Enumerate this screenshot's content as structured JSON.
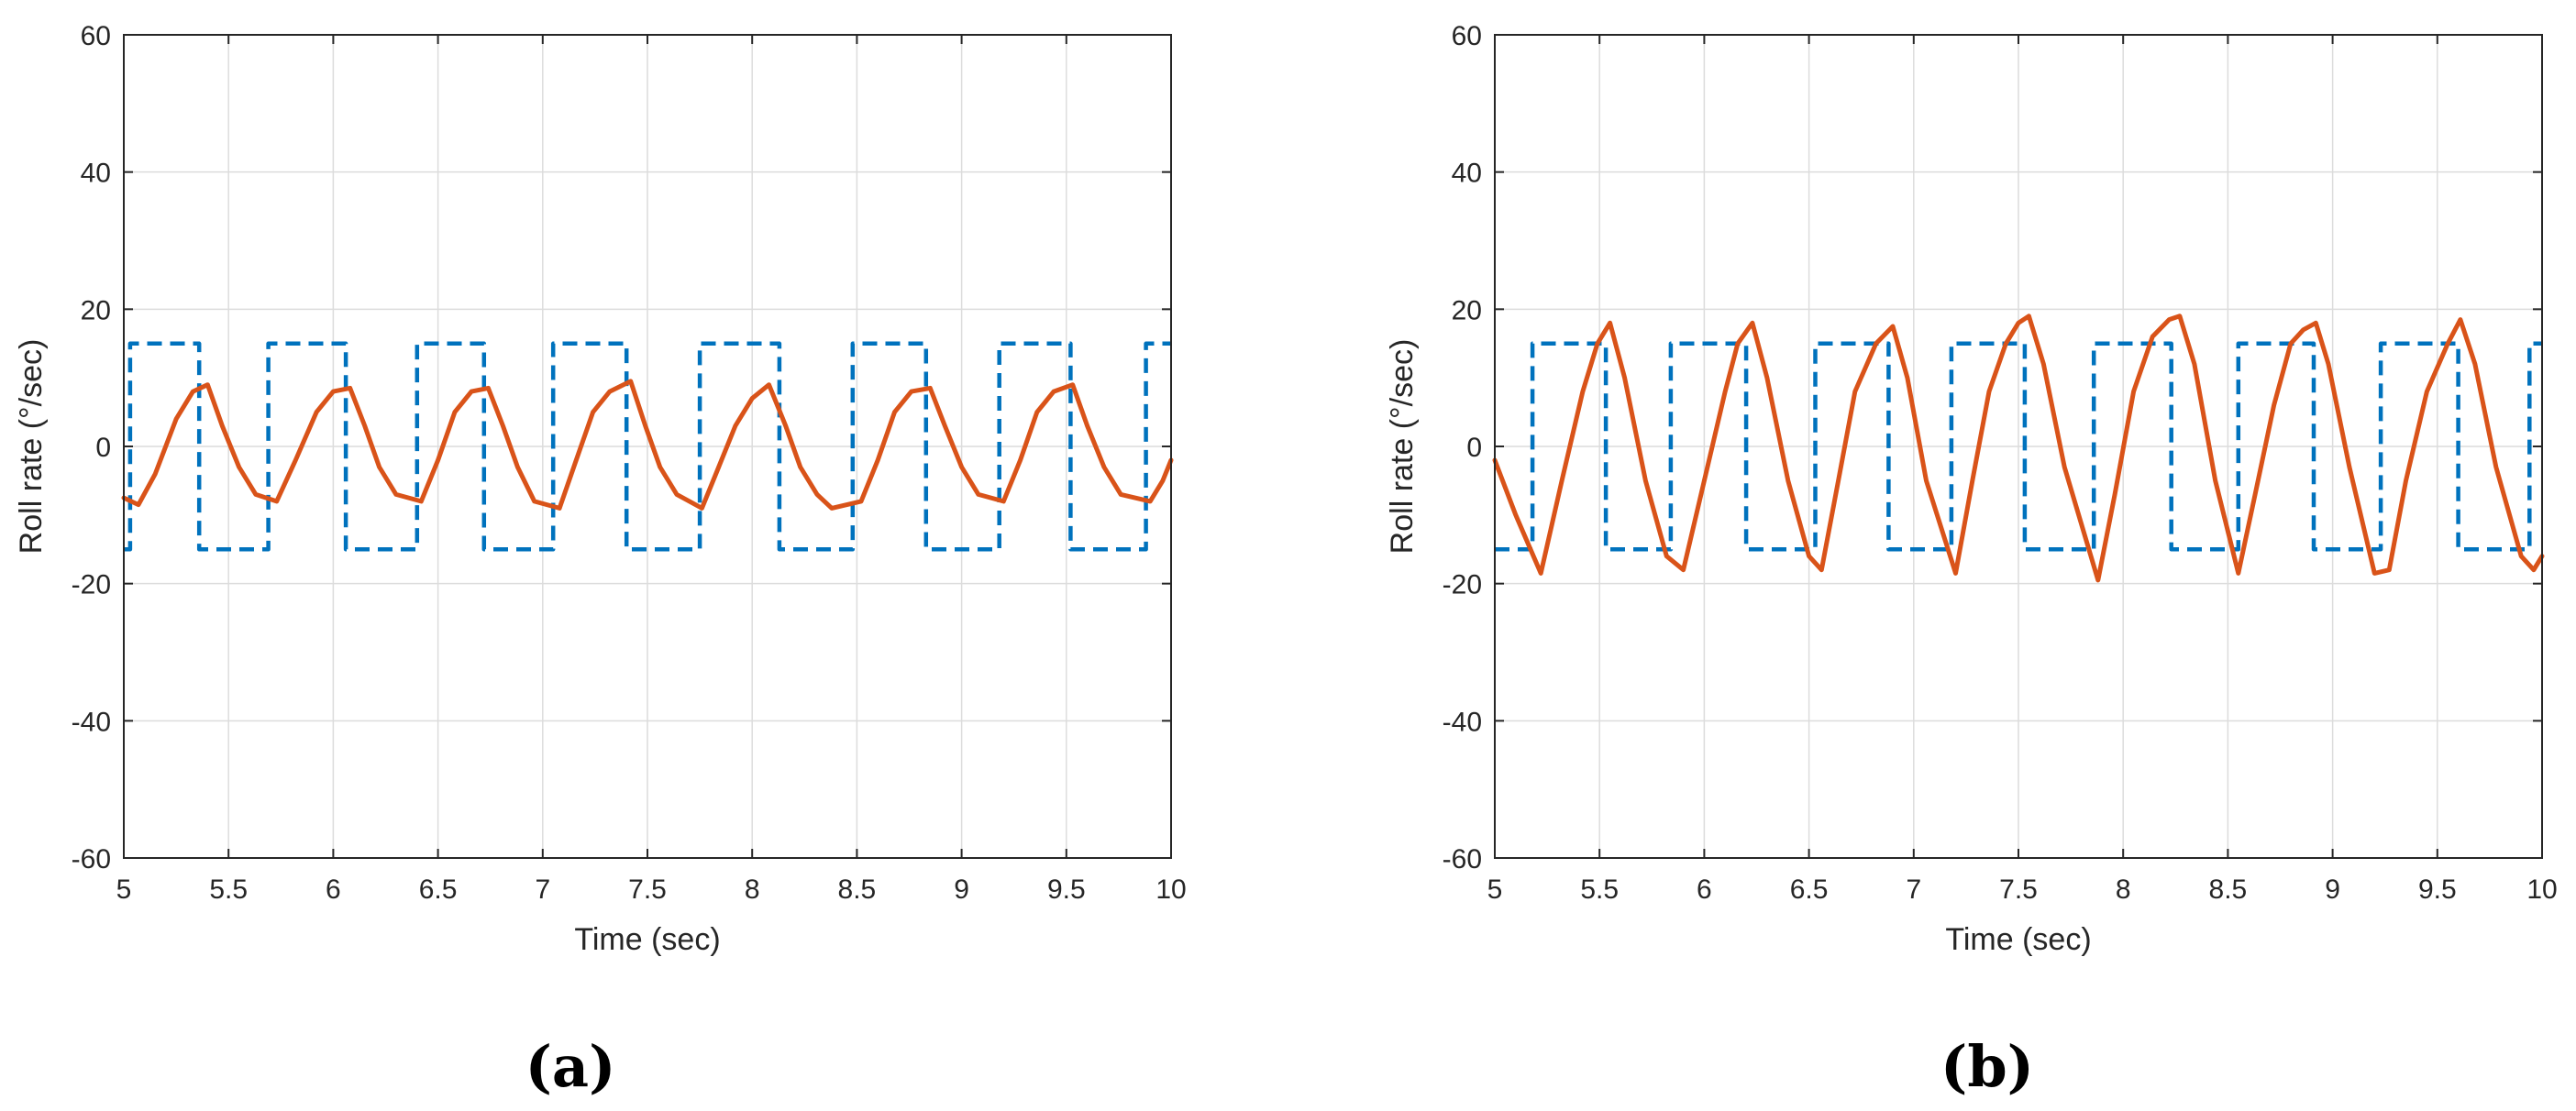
{
  "chart_data": [
    {
      "type": "line",
      "panel_label": "(a)",
      "xlabel": "Time (sec)",
      "ylabel": "Roll rate (°/sec)",
      "xlim": [
        5,
        10
      ],
      "ylim": [
        -60,
        60
      ],
      "xticks": [
        5,
        5.5,
        6,
        6.5,
        7,
        7.5,
        8,
        8.5,
        9,
        9.5,
        10
      ],
      "xtick_labels": [
        "5",
        "5.5",
        "6",
        "6.5",
        "7",
        "7.5",
        "8",
        "8.5",
        "9",
        "9.5",
        "10"
      ],
      "yticks": [
        -60,
        -40,
        -20,
        0,
        20,
        40,
        60
      ],
      "ytick_labels": [
        "-60",
        "-40",
        "-20",
        "0",
        "20",
        "40",
        "60"
      ],
      "grid": true,
      "colors": {
        "command": "#0072BD",
        "response": "#D95319"
      },
      "series": [
        {
          "style": "dashed",
          "color": "#0072BD",
          "x": [
            5.0,
            5.03,
            5.03,
            5.36,
            5.36,
            5.69,
            5.69,
            6.06,
            6.06,
            6.4,
            6.4,
            6.72,
            6.72,
            7.05,
            7.05,
            7.4,
            7.4,
            7.75,
            7.75,
            8.13,
            8.13,
            8.48,
            8.48,
            8.83,
            8.83,
            9.18,
            9.18,
            9.52,
            9.52,
            9.88,
            9.88,
            10.0
          ],
          "y": [
            -15,
            -15,
            15,
            15,
            -15,
            -15,
            15,
            15,
            -15,
            -15,
            15,
            15,
            -15,
            -15,
            15,
            15,
            -15,
            -15,
            15,
            15,
            -15,
            -15,
            15,
            15,
            -15,
            -15,
            15,
            15,
            -15,
            -15,
            15,
            15
          ]
        },
        {
          "style": "solid",
          "color": "#D95319",
          "x": [
            5.0,
            5.07,
            5.15,
            5.25,
            5.33,
            5.4,
            5.47,
            5.55,
            5.63,
            5.73,
            5.82,
            5.92,
            6.0,
            6.08,
            6.15,
            6.22,
            6.3,
            6.42,
            6.5,
            6.58,
            6.66,
            6.74,
            6.81,
            6.88,
            6.96,
            7.08,
            7.16,
            7.24,
            7.32,
            7.42,
            7.49,
            7.56,
            7.64,
            7.76,
            7.84,
            7.92,
            8.0,
            8.08,
            8.16,
            8.23,
            8.31,
            8.38,
            8.52,
            8.6,
            8.68,
            8.76,
            8.85,
            8.92,
            9.0,
            9.08,
            9.2,
            9.28,
            9.36,
            9.44,
            9.53,
            9.6,
            9.68,
            9.76,
            9.9,
            9.96,
            10.0
          ],
          "y": [
            -7.5,
            -8.5,
            -4,
            4,
            8,
            9,
            3,
            -3,
            -7,
            -8,
            -2,
            5,
            8,
            8.5,
            3,
            -3,
            -7,
            -8,
            -2,
            5,
            8,
            8.5,
            3,
            -3,
            -8,
            -9,
            -2,
            5,
            8,
            9.5,
            3,
            -3,
            -7,
            -9,
            -3,
            3,
            7,
            9,
            3,
            -3,
            -7,
            -9,
            -8,
            -2,
            5,
            8,
            8.5,
            3,
            -3,
            -7,
            -8,
            -2,
            5,
            8,
            9,
            3,
            -3,
            -7,
            -8,
            -5,
            -2
          ]
        }
      ]
    },
    {
      "type": "line",
      "panel_label": "(b)",
      "xlabel": "Time (sec)",
      "ylabel": "Roll rate (°/sec)",
      "xlim": [
        5,
        10
      ],
      "ylim": [
        -60,
        60
      ],
      "xticks": [
        5,
        5.5,
        6,
        6.5,
        7,
        7.5,
        8,
        8.5,
        9,
        9.5,
        10
      ],
      "xtick_labels": [
        "5",
        "5.5",
        "6",
        "6.5",
        "7",
        "7.5",
        "8",
        "8.5",
        "9",
        "9.5",
        "10"
      ],
      "yticks": [
        -60,
        -40,
        -20,
        0,
        20,
        40,
        60
      ],
      "ytick_labels": [
        "-60",
        "-40",
        "-20",
        "0",
        "20",
        "40",
        "60"
      ],
      "grid": true,
      "colors": {
        "command": "#0072BD",
        "response": "#D95319"
      },
      "series": [
        {
          "style": "dashed",
          "color": "#0072BD",
          "x": [
            5.0,
            5.18,
            5.18,
            5.53,
            5.53,
            5.84,
            5.84,
            6.2,
            6.2,
            6.53,
            6.53,
            6.88,
            6.88,
            7.18,
            7.18,
            7.53,
            7.53,
            7.86,
            7.86,
            8.23,
            8.23,
            8.55,
            8.55,
            8.91,
            8.91,
            9.23,
            9.23,
            9.6,
            9.6,
            9.94,
            9.94,
            10.0
          ],
          "y": [
            -15,
            -15,
            15,
            15,
            -15,
            -15,
            15,
            15,
            -15,
            -15,
            15,
            15,
            -15,
            -15,
            15,
            15,
            -15,
            -15,
            15,
            15,
            -15,
            -15,
            15,
            15,
            -15,
            -15,
            15,
            15,
            -15,
            -15,
            15,
            15
          ]
        },
        {
          "style": "solid",
          "color": "#D95319",
          "x": [
            5.0,
            5.1,
            5.22,
            5.32,
            5.42,
            5.49,
            5.55,
            5.62,
            5.72,
            5.82,
            5.9,
            6.0,
            6.1,
            6.16,
            6.23,
            6.3,
            6.4,
            6.5,
            6.56,
            6.64,
            6.72,
            6.82,
            6.9,
            6.97,
            7.06,
            7.2,
            7.28,
            7.36,
            7.44,
            7.5,
            7.55,
            7.62,
            7.72,
            7.88,
            7.96,
            8.05,
            8.14,
            8.22,
            8.27,
            8.34,
            8.44,
            8.55,
            8.63,
            8.72,
            8.8,
            8.86,
            8.92,
            8.98,
            9.08,
            9.2,
            9.27,
            9.35,
            9.45,
            9.55,
            9.61,
            9.68,
            9.78,
            9.9,
            9.96,
            10.0
          ],
          "y": [
            -2,
            -10,
            -18.5,
            -5,
            8,
            15,
            18,
            10,
            -5,
            -16,
            -18,
            -5,
            8,
            15,
            18,
            10,
            -5,
            -16,
            -18,
            -5,
            8,
            15,
            17.5,
            10,
            -5,
            -18.5,
            -5,
            8,
            15,
            18,
            19,
            12,
            -3,
            -19.5,
            -7,
            8,
            16,
            18.5,
            19,
            12,
            -5,
            -18.5,
            -7,
            6,
            15,
            17,
            18,
            12,
            -3,
            -18.5,
            -18,
            -5,
            8,
            15,
            18.5,
            12,
            -3,
            -16,
            -18,
            -16
          ]
        }
      ]
    }
  ]
}
